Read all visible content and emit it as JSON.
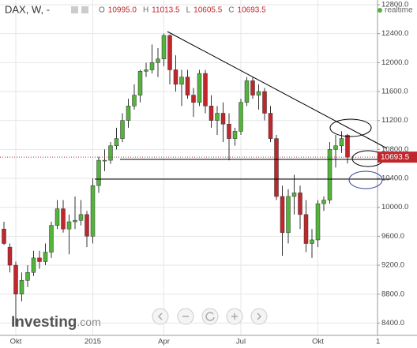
{
  "chart_data": {
    "type": "candlestick",
    "symbol": "DAX, W, -",
    "header": {
      "o_label": "O",
      "o": "10995.0",
      "h_label": "H",
      "h": "11013.5",
      "l_label": "L",
      "l": "10605.5",
      "c_label": "C",
      "c": "10693.5"
    },
    "status": "realtime",
    "last_price_label": "10693.5",
    "last_price": 10693.5,
    "brand": "Investing",
    "brand_suffix": ".com",
    "axis_end_label": "1",
    "categories": [
      null,
      null,
      "Okt",
      null,
      null,
      null,
      null,
      null,
      null,
      null,
      null,
      null,
      null,
      null,
      null,
      "2015",
      null,
      null,
      null,
      null,
      null,
      null,
      null,
      null,
      null,
      null,
      null,
      "Apr",
      null,
      null,
      null,
      null,
      null,
      null,
      null,
      null,
      null,
      null,
      null,
      null,
      "Jul",
      null,
      null,
      null,
      null,
      null,
      null,
      null,
      null,
      null,
      null,
      null,
      null,
      "Okt",
      null,
      null,
      null,
      null,
      null
    ],
    "open": [
      9700,
      9450,
      9200,
      8800,
      8990,
      9100,
      9300,
      9250,
      9380,
      9750,
      9980,
      9700,
      9800,
      9820,
      9900,
      9600,
      10300,
      10650,
      10650,
      10850,
      10950,
      11200,
      11400,
      11550,
      11880,
      11900,
      12000,
      12050,
      12375,
      11900,
      11700,
      11800,
      11550,
      11450,
      11850,
      11400,
      11200,
      11300,
      11150,
      10950,
      11050,
      11450,
      11750,
      11550,
      11600,
      11300,
      10950,
      10150,
      9650,
      10150,
      10200,
      9900,
      9500,
      9550,
      10050,
      10100,
      10800,
      10850,
      10995
    ],
    "high": [
      9800,
      9500,
      9250,
      9100,
      9200,
      9400,
      9400,
      9500,
      9800,
      10100,
      10100,
      9900,
      10150,
      10100,
      9950,
      10400,
      10700,
      10800,
      10900,
      11100,
      11300,
      11500,
      11700,
      11900,
      12000,
      12250,
      12200,
      12400,
      12390,
      12100,
      11900,
      11900,
      11650,
      11900,
      11900,
      11550,
      11400,
      11450,
      11300,
      11100,
      11500,
      11800,
      11800,
      11700,
      11650,
      11400,
      11000,
      10300,
      10250,
      10450,
      10300,
      10100,
      9700,
      10100,
      10150,
      10900,
      11000,
      11050,
      11013.5
    ],
    "low": [
      9480,
      9100,
      8355,
      8700,
      8900,
      9050,
      9150,
      9200,
      9300,
      9700,
      9650,
      9350,
      9700,
      9750,
      9450,
      9500,
      10200,
      10500,
      10600,
      10800,
      10900,
      11100,
      11350,
      11450,
      11800,
      11850,
      11800,
      11950,
      11700,
      11600,
      11400,
      11500,
      11250,
      11400,
      11300,
      11100,
      11000,
      10900,
      10650,
      10850,
      11000,
      11400,
      11500,
      11350,
      11200,
      10900,
      10100,
      9330,
      9500,
      9900,
      9700,
      9380,
      9300,
      9450,
      9950,
      10050,
      10550,
      10750,
      10605.5
    ],
    "close": [
      9500,
      9200,
      8800,
      8990,
      9100,
      9300,
      9250,
      9380,
      9750,
      9980,
      9700,
      9800,
      9820,
      9900,
      9600,
      10300,
      10650,
      10650,
      10850,
      10950,
      11200,
      11400,
      11550,
      11880,
      11900,
      12000,
      12050,
      12375,
      11900,
      11700,
      11800,
      11550,
      11450,
      11850,
      11400,
      11200,
      11300,
      11150,
      10950,
      11050,
      11450,
      11750,
      11550,
      11600,
      11300,
      10950,
      10150,
      9650,
      10150,
      10200,
      9900,
      9500,
      9550,
      10050,
      10100,
      10800,
      10850,
      10950,
      10693.5
    ],
    "up_color": "#53b33a",
    "down_color": "#c0272d",
    "ylim": [
      8230,
      12865
    ],
    "yticks": [
      {
        "value": 8400,
        "label": "8400.0"
      },
      {
        "value": 8800,
        "label": "8800.0"
      },
      {
        "value": 9200,
        "label": "9200.0"
      },
      {
        "value": 9600,
        "label": "9600.0"
      },
      {
        "value": 10000,
        "label": "10000.0"
      },
      {
        "value": 10400,
        "label": "10400.0"
      },
      {
        "value": 10800,
        "label": "10800.0"
      },
      {
        "value": 11200,
        "label": "11200.0"
      },
      {
        "value": 11600,
        "label": "11600.0"
      },
      {
        "value": 12000,
        "label": "12000.0"
      },
      {
        "value": 12400,
        "label": "12400.0"
      },
      {
        "value": 12800,
        "label": "12800.0"
      }
    ],
    "grid": true
  }
}
